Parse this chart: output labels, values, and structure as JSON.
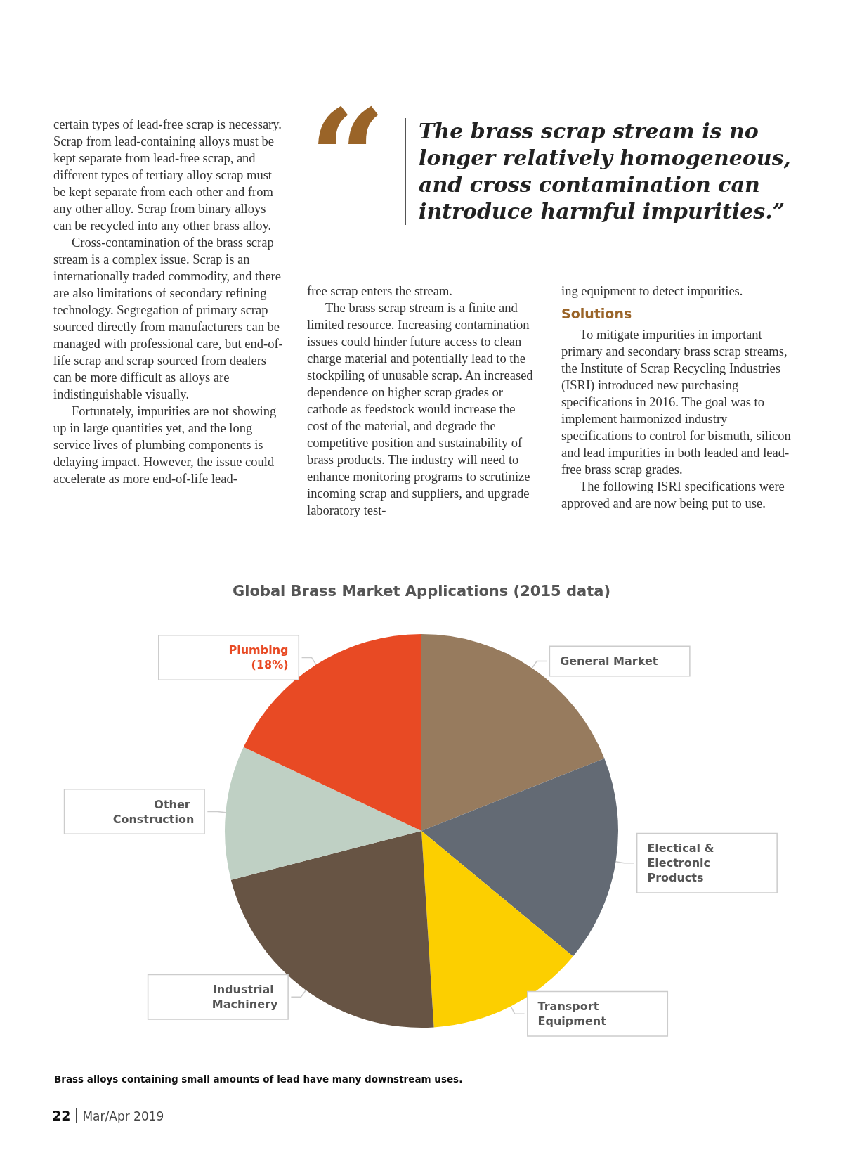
{
  "chart_data": {
    "type": "pie",
    "title": "Global Brass Market Applications (2015 data)",
    "categories": [
      "General Market",
      "Electical & Electronic Products",
      "Transport Equipment",
      "Industrial Machinery",
      "Other Construction",
      "Plumbing"
    ],
    "values": [
      19,
      17,
      13,
      22,
      11,
      18
    ],
    "colors": [
      "#977b5e",
      "#636a74",
      "#fccf00",
      "#675444",
      "#bfd0c4",
      "#e84a24"
    ],
    "value_labels": [
      null,
      null,
      null,
      null,
      null,
      "(18%)"
    ],
    "legend": false,
    "annotations": [
      "“",
      "The brass scrap stream is no longer relatively homogeneous, and cross contamination can introduce harmful impurities.”",
      "certain types of lead-free scrap is necessary. Scrap from lead-containing alloys must be kept separate from lead-free scrap, and different types of tertiary alloy scrap must be kept separate from each other and from any other alloy. Scrap from binary alloys can be recycled into any other brass alloy.",
      "Cross-contamination of the brass scrap stream is a complex issue. Scrap is an internationally traded commodity, and there are also limitations of secondary refining technology. Segregation of primary scrap sourced directly from manufacturers can be managed with professional care, but end-of-life scrap and scrap sourced from dealers can be more difficult as alloys are indistinguishable visually.",
      "Fortunately, impurities are not showing up in large quantities yet, and the long service lives of plumbing components is delaying impact. However, the issue could accelerate as more end-of-life lead-",
      "free scrap enters the stream.",
      "The brass scrap stream is a finite and limited resource. Increasing contamination issues could hinder future access to clean charge material and potentially lead to the stockpiling of unusable scrap. An increased dependence on higher scrap grades or cathode as feedstock would increase the cost of the material, and degrade the competitive position and sustainability of brass products. The industry will need to enhance monitoring programs to scrutinize incoming scrap and suppliers, and upgrade laboratory test-",
      "ing equipment to detect impurities.",
      "Solutions",
      "To mitigate impurities in important primary and secondary brass scrap streams, the Institute of Scrap Recycling Industries (ISRI) introduced new purchasing specifications in 2016. The goal was to implement harmonized industry specifications to control for bismuth, silicon and lead impurities in both leaded and lead-free brass scrap grades.",
      "The following ISRI specifications were approved and are now being put to use.",
      "Brass alloys containing small amounts of lead have many downstream uses.",
      "22",
      "Mar/Apr 2019"
    ]
  }
}
